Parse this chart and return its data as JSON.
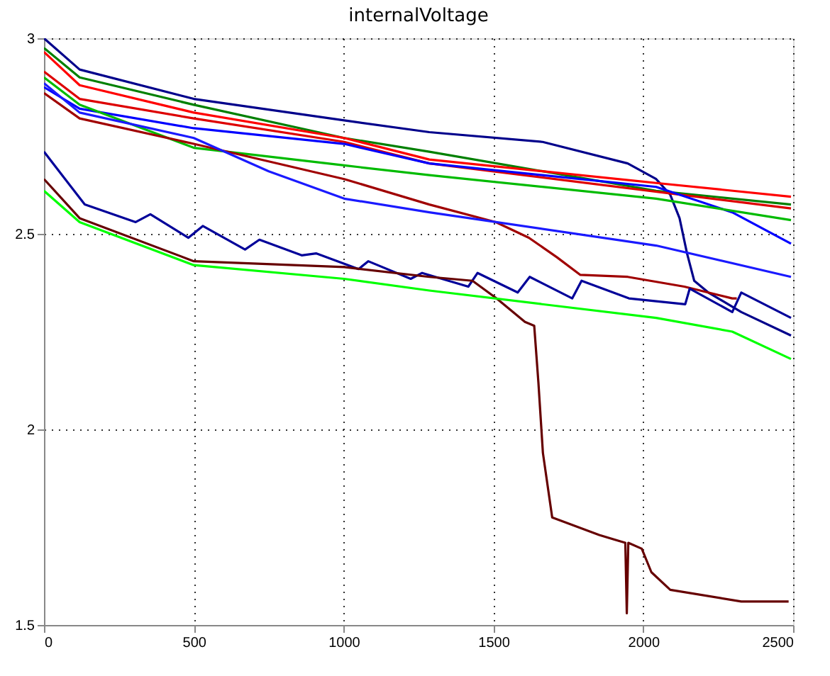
{
  "chart_data": {
    "type": "line",
    "title": "internalVoltage",
    "xlim": [
      0,
      2500
    ],
    "ylim": [
      1.5,
      3
    ],
    "xticks": [
      0,
      500,
      1000,
      1500,
      2000,
      2500
    ],
    "yticks": [
      1.5,
      2,
      2.5,
      3
    ],
    "grid": true,
    "line_style": "solid",
    "marker": "none",
    "series": [
      {
        "color": "#00008b",
        "x": [
          0,
          119,
          500,
          1002,
          1286,
          1664,
          1948,
          2043,
          2090,
          2121,
          2146,
          2170,
          2217,
          2327,
          2493
        ],
        "values": [
          3.0,
          2.92,
          2.845,
          2.79,
          2.76,
          2.735,
          2.68,
          2.64,
          2.6,
          2.54,
          2.45,
          2.38,
          2.35,
          2.3,
          2.24
        ]
      },
      {
        "color": "#008000",
        "x": [
          0,
          119,
          500,
          1002,
          1286,
          1664,
          2043,
          2493
        ],
        "values": [
          2.975,
          2.9,
          2.83,
          2.745,
          2.71,
          2.66,
          2.61,
          2.575
        ]
      },
      {
        "color": "#ff0000",
        "x": [
          0,
          119,
          500,
          1002,
          1286,
          2043,
          2493
        ],
        "values": [
          2.965,
          2.88,
          2.81,
          2.745,
          2.69,
          2.63,
          2.595
        ]
      },
      {
        "color": "#dd0000",
        "x": [
          0,
          119,
          500,
          1002,
          1286,
          2493
        ],
        "values": [
          2.915,
          2.845,
          2.795,
          2.735,
          2.68,
          2.565
        ]
      },
      {
        "color": "#0000ff",
        "x": [
          0,
          119,
          500,
          1002,
          1286,
          2043,
          2297,
          2493
        ],
        "values": [
          2.875,
          2.82,
          2.77,
          2.73,
          2.68,
          2.62,
          2.555,
          2.475
        ]
      },
      {
        "color": "#00bb00",
        "x": [
          0,
          119,
          500,
          1002,
          1286,
          2043,
          2493
        ],
        "values": [
          2.9,
          2.83,
          2.72,
          2.675,
          2.65,
          2.59,
          2.535
        ]
      },
      {
        "color": "#a00000",
        "x": [
          0,
          119,
          500,
          1002,
          1286,
          1508,
          1618,
          1712,
          1790,
          1948,
          2137,
          2297,
          2312
        ],
        "values": [
          2.86,
          2.795,
          2.73,
          2.64,
          2.575,
          2.53,
          2.49,
          2.44,
          2.395,
          2.39,
          2.365,
          2.335,
          2.335
        ]
      },
      {
        "color": "#1a1aff",
        "x": [
          0,
          119,
          500,
          750,
          1002,
          1286,
          2043,
          2493
        ],
        "values": [
          2.885,
          2.81,
          2.745,
          2.66,
          2.59,
          2.555,
          2.47,
          2.39
        ]
      },
      {
        "color": "#000099",
        "x": [
          0,
          136,
          306,
          355,
          482,
          530,
          671,
          719,
          860,
          908,
          1050,
          1082,
          1224,
          1262,
          1416,
          1447,
          1581,
          1621,
          1763,
          1794,
          1952,
          2140,
          2155,
          2297,
          2327,
          2493
        ],
        "values": [
          2.71,
          2.575,
          2.53,
          2.55,
          2.49,
          2.52,
          2.46,
          2.485,
          2.445,
          2.45,
          2.41,
          2.43,
          2.385,
          2.4,
          2.365,
          2.4,
          2.35,
          2.39,
          2.335,
          2.38,
          2.335,
          2.32,
          2.36,
          2.3,
          2.35,
          2.285
        ]
      },
      {
        "color": "#660000",
        "x": [
          0,
          119,
          500,
          1002,
          1286,
          1430,
          1510,
          1605,
          1636,
          1650,
          1665,
          1696,
          1853,
          1940,
          1945,
          1950,
          1995,
          2027,
          2090,
          2327,
          2485
        ],
        "values": [
          2.64,
          2.54,
          2.43,
          2.415,
          2.39,
          2.38,
          2.335,
          2.275,
          2.265,
          2.12,
          1.94,
          1.775,
          1.73,
          1.71,
          1.53,
          1.71,
          1.695,
          1.635,
          1.59,
          1.56,
          1.56
        ]
      },
      {
        "color": "#00ff00",
        "x": [
          0,
          119,
          500,
          1002,
          1286,
          2043,
          2297,
          2493
        ],
        "values": [
          2.61,
          2.53,
          2.42,
          2.385,
          2.355,
          2.285,
          2.25,
          2.18
        ]
      }
    ]
  }
}
